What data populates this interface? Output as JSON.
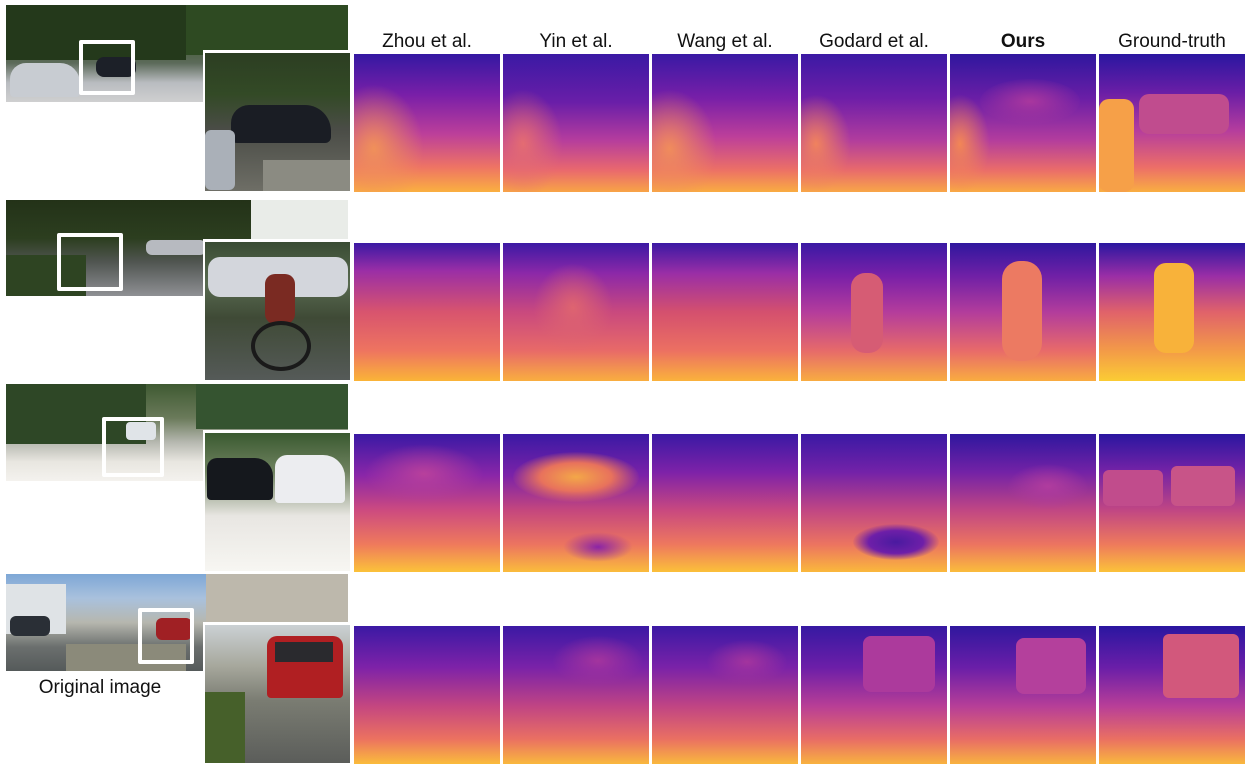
{
  "columns": [
    {
      "label": "Zhou et al.",
      "bold": false
    },
    {
      "label": "Yin et al.",
      "bold": false
    },
    {
      "label": "Wang et al.",
      "bold": false
    },
    {
      "label": "Godard et al.",
      "bold": false
    },
    {
      "label": "Ours",
      "bold": true
    },
    {
      "label": "Ground-truth",
      "bold": false
    }
  ],
  "original_label": "Original image",
  "rows": [
    {
      "scene": "parked-cars-shaded-street"
    },
    {
      "scene": "cyclist-on-street"
    },
    {
      "scene": "sunny-road-cars"
    },
    {
      "scene": "red-car-intersection"
    }
  ],
  "colors": {
    "depth_far": "#2a16a0",
    "depth_mid": "#b23ca8",
    "depth_near": "#f98d3a",
    "depth_closest": "#fbd433",
    "zoom_box": "#ffffff"
  }
}
